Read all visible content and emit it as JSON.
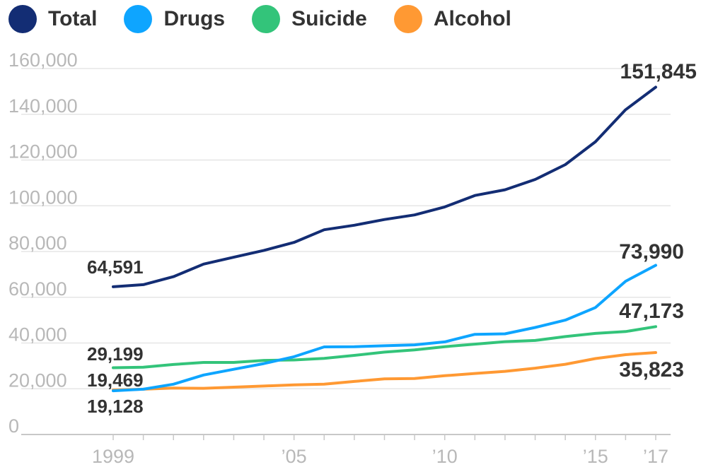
{
  "colors": {
    "Total": "#132d74",
    "Drugs": "#0ea5ff",
    "Suicide": "#33c47a",
    "Alcohol": "#ff9933",
    "grid": "#e6e6e6",
    "tick_text": "#b8b8b8",
    "label_text": "#333333"
  },
  "chart_data": {
    "type": "line",
    "title": "",
    "xlabel": "",
    "ylabel": "",
    "legend_position": "top-left",
    "grid": true,
    "ylim": [
      0,
      160000
    ],
    "xlim": [
      1999,
      2017
    ],
    "y_ticks": [
      0,
      20000,
      40000,
      60000,
      80000,
      100000,
      120000,
      140000,
      160000
    ],
    "y_tick_labels": [
      "0",
      "20,000",
      "40,000",
      "60,000",
      "80,000",
      "100,000",
      "120,000",
      "140,000",
      "160,000"
    ],
    "x_tick_labels": [
      {
        "year": 1999,
        "label": "1999"
      },
      {
        "year": 2005,
        "label": "’05"
      },
      {
        "year": 2010,
        "label": "’10"
      },
      {
        "year": 2015,
        "label": "’15"
      },
      {
        "year": 2017,
        "label": "’17"
      }
    ],
    "x": [
      1999,
      2000,
      2001,
      2002,
      2003,
      2004,
      2005,
      2006,
      2007,
      2008,
      2009,
      2010,
      2011,
      2012,
      2013,
      2014,
      2015,
      2016,
      2017
    ],
    "series": [
      {
        "name": "Total",
        "values": [
          64591,
          65500,
          69000,
          74500,
          77500,
          80500,
          84000,
          89500,
          91500,
          94000,
          96000,
          99500,
          104500,
          107000,
          111500,
          118000,
          128000,
          142000,
          151845
        ]
      },
      {
        "name": "Drugs",
        "values": [
          19128,
          19800,
          22000,
          26000,
          28500,
          31000,
          34000,
          38300,
          38400,
          38800,
          39200,
          40500,
          43800,
          44000,
          46800,
          50000,
          55500,
          67000,
          73990
        ]
      },
      {
        "name": "Suicide",
        "values": [
          29199,
          29400,
          30600,
          31500,
          31500,
          32400,
          32600,
          33300,
          34600,
          36000,
          37000,
          38400,
          39500,
          40600,
          41100,
          42800,
          44200,
          45000,
          47173
        ]
      },
      {
        "name": "Alcohol",
        "values": [
          19469,
          19800,
          20300,
          20200,
          20700,
          21200,
          21700,
          22000,
          23200,
          24300,
          24500,
          25700,
          26700,
          27600,
          29000,
          30700,
          33200,
          34900,
          35823
        ]
      }
    ],
    "annotations": [
      {
        "series": "Total",
        "year": 1999,
        "text": "64,591"
      },
      {
        "series": "Suicide",
        "year": 1999,
        "text": "29,199"
      },
      {
        "series": "Alcohol",
        "year": 1999,
        "text": "19,469"
      },
      {
        "series": "Drugs",
        "year": 1999,
        "text": "19,128"
      },
      {
        "series": "Total",
        "year": 2017,
        "text": "151,845"
      },
      {
        "series": "Drugs",
        "year": 2017,
        "text": "73,990"
      },
      {
        "series": "Suicide",
        "year": 2017,
        "text": "47,173"
      },
      {
        "series": "Alcohol",
        "year": 2017,
        "text": "35,823"
      }
    ]
  }
}
